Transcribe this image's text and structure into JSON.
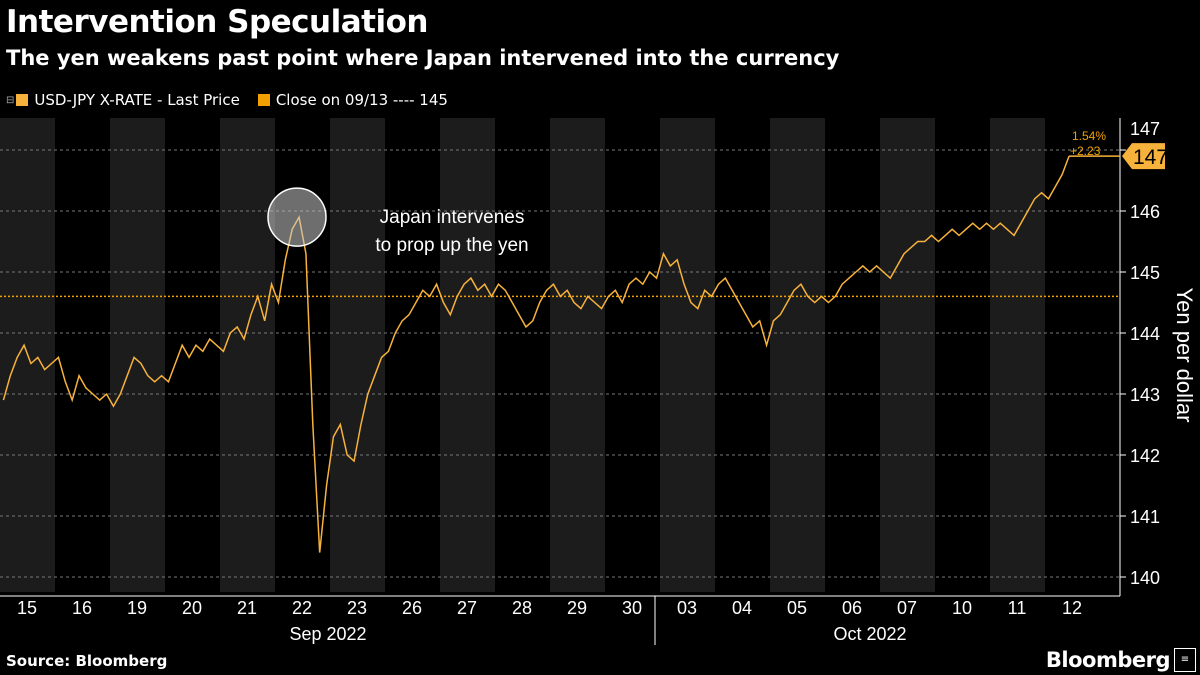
{
  "title": "Intervention Speculation",
  "subtitle": "The yen weakens past point where Japan intervened into the currency",
  "legend": [
    {
      "label": "USD-JPY X-RATE - Last Price",
      "color": "#f7b23b"
    },
    {
      "label": "Close on 09/13 ---- 145",
      "color": "#f0a000"
    }
  ],
  "source": "Source: Bloomberg",
  "logo": "Bloomberg",
  "chart_data": {
    "type": "line",
    "ylabel": "Yen per dollar",
    "ylim": [
      139.8,
      147.5
    ],
    "yticks": [
      140,
      141,
      142,
      143,
      144,
      145,
      146,
      147
    ],
    "grid": true,
    "axis_side": "right",
    "months": [
      {
        "label": "Sep 2022"
      },
      {
        "label": "Oct 2022"
      }
    ],
    "reference_line": {
      "label": "Close on 09/13",
      "value": 144.6,
      "color": "#f0a000"
    },
    "last_price": {
      "value": "147",
      "change_pct": "1.54%",
      "change_abs": "+2.23"
    },
    "annotation": {
      "lines": [
        "Japan intervenes",
        "to prop up the yen"
      ],
      "day": "22",
      "value": 145.9
    },
    "series": [
      {
        "name": "USD-JPY X-RATE - Last Price",
        "color": "#f7b23b",
        "days": [
          {
            "day": "15",
            "values": [
              142.9,
              143.3,
              143.6,
              143.8,
              143.5,
              143.6,
              143.4,
              143.5
            ]
          },
          {
            "day": "16",
            "values": [
              143.6,
              143.2,
              142.9,
              143.3,
              143.1,
              143.0,
              142.9,
              143.0
            ]
          },
          {
            "day": "19",
            "values": [
              142.8,
              143.0,
              143.3,
              143.6,
              143.5,
              143.3,
              143.2,
              143.3
            ]
          },
          {
            "day": "20",
            "values": [
              143.2,
              143.5,
              143.8,
              143.6,
              143.8,
              143.7,
              143.9,
              143.8
            ]
          },
          {
            "day": "21",
            "values": [
              143.7,
              144.0,
              144.1,
              143.9,
              144.3,
              144.6,
              144.2,
              144.8
            ]
          },
          {
            "day": "22",
            "values": [
              144.5,
              145.2,
              145.7,
              145.9,
              145.3,
              142.5,
              140.4,
              141.5
            ]
          },
          {
            "day": "23",
            "values": [
              142.3,
              142.5,
              142.0,
              141.9,
              142.5,
              143.0,
              143.3,
              143.6
            ]
          },
          {
            "day": "26",
            "values": [
              143.7,
              144.0,
              144.2,
              144.3,
              144.5,
              144.7,
              144.6,
              144.8
            ]
          },
          {
            "day": "27",
            "values": [
              144.5,
              144.3,
              144.6,
              144.8,
              144.9,
              144.7,
              144.8,
              144.6
            ]
          },
          {
            "day": "28",
            "values": [
              144.8,
              144.7,
              144.5,
              144.3,
              144.1,
              144.2,
              144.5,
              144.7
            ]
          },
          {
            "day": "29",
            "values": [
              144.8,
              144.6,
              144.7,
              144.5,
              144.4,
              144.6,
              144.5,
              144.4
            ]
          },
          {
            "day": "30",
            "values": [
              144.6,
              144.7,
              144.5,
              144.8,
              144.9,
              144.8,
              145.0,
              144.9
            ]
          },
          {
            "day": "03",
            "values": [
              145.3,
              145.1,
              145.2,
              144.8,
              144.5,
              144.4,
              144.7,
              144.6
            ]
          },
          {
            "day": "04",
            "values": [
              144.8,
              144.9,
              144.7,
              144.5,
              144.3,
              144.1,
              144.2,
              143.8
            ]
          },
          {
            "day": "05",
            "values": [
              144.2,
              144.3,
              144.5,
              144.7,
              144.8,
              144.6,
              144.5,
              144.6
            ]
          },
          {
            "day": "06",
            "values": [
              144.5,
              144.6,
              144.8,
              144.9,
              145.0,
              145.1,
              145.0,
              145.1
            ]
          },
          {
            "day": "07",
            "values": [
              145.0,
              144.9,
              145.1,
              145.3,
              145.4,
              145.5,
              145.5,
              145.6
            ]
          },
          {
            "day": "10",
            "values": [
              145.5,
              145.6,
              145.7,
              145.6,
              145.7,
              145.8,
              145.7,
              145.8
            ]
          },
          {
            "day": "11",
            "values": [
              145.7,
              145.8,
              145.7,
              145.6,
              145.8,
              146.0,
              146.2,
              146.3
            ]
          },
          {
            "day": "12",
            "values": [
              146.2,
              146.4,
              146.6,
              146.9
            ]
          }
        ]
      }
    ]
  }
}
